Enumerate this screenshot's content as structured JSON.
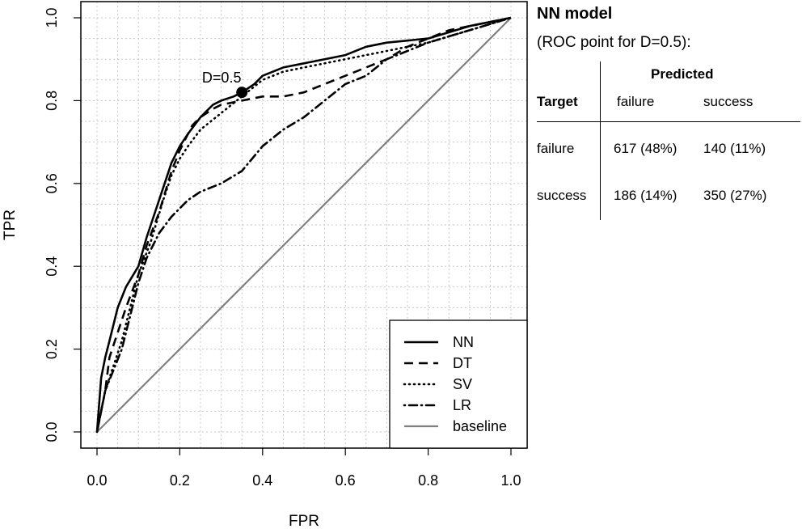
{
  "chart_data": {
    "type": "line",
    "xlabel": "FPR",
    "ylabel": "TPR",
    "xlim": [
      0,
      1
    ],
    "ylim": [
      0,
      1
    ],
    "xticks": [
      "0.0",
      "0.2",
      "0.4",
      "0.6",
      "0.8",
      "1.0"
    ],
    "yticks": [
      "0.0",
      "0.2",
      "0.4",
      "0.6",
      "0.8",
      "1.0"
    ],
    "grid": true,
    "legend_position": "bottom-right",
    "series": [
      {
        "name": "NN",
        "style": "solid",
        "x": [
          0,
          0.01,
          0.02,
          0.03,
          0.05,
          0.07,
          0.1,
          0.12,
          0.15,
          0.18,
          0.2,
          0.22,
          0.25,
          0.28,
          0.3,
          0.33,
          0.35,
          0.38,
          0.4,
          0.45,
          0.5,
          0.6,
          0.65,
          0.7,
          0.8,
          0.9,
          1.0
        ],
        "y": [
          0,
          0.13,
          0.18,
          0.22,
          0.3,
          0.35,
          0.4,
          0.47,
          0.56,
          0.65,
          0.69,
          0.72,
          0.76,
          0.79,
          0.8,
          0.81,
          0.82,
          0.84,
          0.86,
          0.88,
          0.89,
          0.91,
          0.93,
          0.94,
          0.95,
          0.98,
          1.0
        ]
      },
      {
        "name": "DT",
        "style": "dashed",
        "x": [
          0,
          0.02,
          0.03,
          0.05,
          0.07,
          0.1,
          0.12,
          0.15,
          0.18,
          0.2,
          0.23,
          0.25,
          0.28,
          0.3,
          0.35,
          0.4,
          0.45,
          0.5,
          0.55,
          0.6,
          0.65,
          0.7,
          0.75,
          0.8,
          0.85,
          0.9,
          1.0
        ],
        "y": [
          0,
          0.1,
          0.18,
          0.24,
          0.3,
          0.38,
          0.45,
          0.53,
          0.63,
          0.68,
          0.74,
          0.76,
          0.78,
          0.79,
          0.8,
          0.81,
          0.81,
          0.82,
          0.84,
          0.86,
          0.88,
          0.9,
          0.93,
          0.95,
          0.97,
          0.98,
          1.0
        ]
      },
      {
        "name": "SV",
        "style": "dotted",
        "x": [
          0,
          0.02,
          0.04,
          0.06,
          0.08,
          0.1,
          0.13,
          0.16,
          0.18,
          0.2,
          0.22,
          0.25,
          0.3,
          0.35,
          0.4,
          0.45,
          0.5,
          0.6,
          0.7,
          0.8,
          0.9,
          1.0
        ],
        "y": [
          0,
          0.1,
          0.16,
          0.22,
          0.3,
          0.38,
          0.46,
          0.56,
          0.62,
          0.66,
          0.69,
          0.73,
          0.77,
          0.81,
          0.85,
          0.87,
          0.88,
          0.9,
          0.92,
          0.94,
          0.97,
          1.0
        ]
      },
      {
        "name": "LR",
        "style": "dotdash",
        "x": [
          0,
          0.02,
          0.04,
          0.06,
          0.08,
          0.1,
          0.12,
          0.15,
          0.18,
          0.2,
          0.22,
          0.25,
          0.3,
          0.35,
          0.4,
          0.45,
          0.5,
          0.55,
          0.6,
          0.65,
          0.7,
          0.75,
          0.8,
          0.9,
          1.0
        ],
        "y": [
          0,
          0.1,
          0.15,
          0.2,
          0.28,
          0.36,
          0.42,
          0.48,
          0.52,
          0.54,
          0.56,
          0.58,
          0.6,
          0.63,
          0.69,
          0.73,
          0.76,
          0.8,
          0.84,
          0.86,
          0.9,
          0.92,
          0.94,
          0.97,
          1.0
        ]
      },
      {
        "name": "baseline",
        "style": "solid-gray",
        "x": [
          0,
          1
        ],
        "y": [
          0,
          1
        ]
      }
    ],
    "annotations": [
      {
        "text": "D=0.5",
        "x": 0.35,
        "y": 0.82,
        "series": "NN"
      }
    ],
    "colors": {
      "curves": "#000000",
      "baseline": "#7f7f7f",
      "grid": "#c8c8c8"
    }
  },
  "panel": {
    "title": "NN model",
    "subtitle": "(ROC point for D=0.5):",
    "confusion_matrix": {
      "predicted_header": "Predicted",
      "target_header": "Target",
      "columns": [
        "failure",
        "success"
      ],
      "rows": [
        {
          "label": "failure",
          "cells": [
            "617 (48%)",
            "140 (11%)"
          ]
        },
        {
          "label": "success",
          "cells": [
            "186 (14%)",
            "350 (27%)"
          ]
        }
      ]
    }
  }
}
